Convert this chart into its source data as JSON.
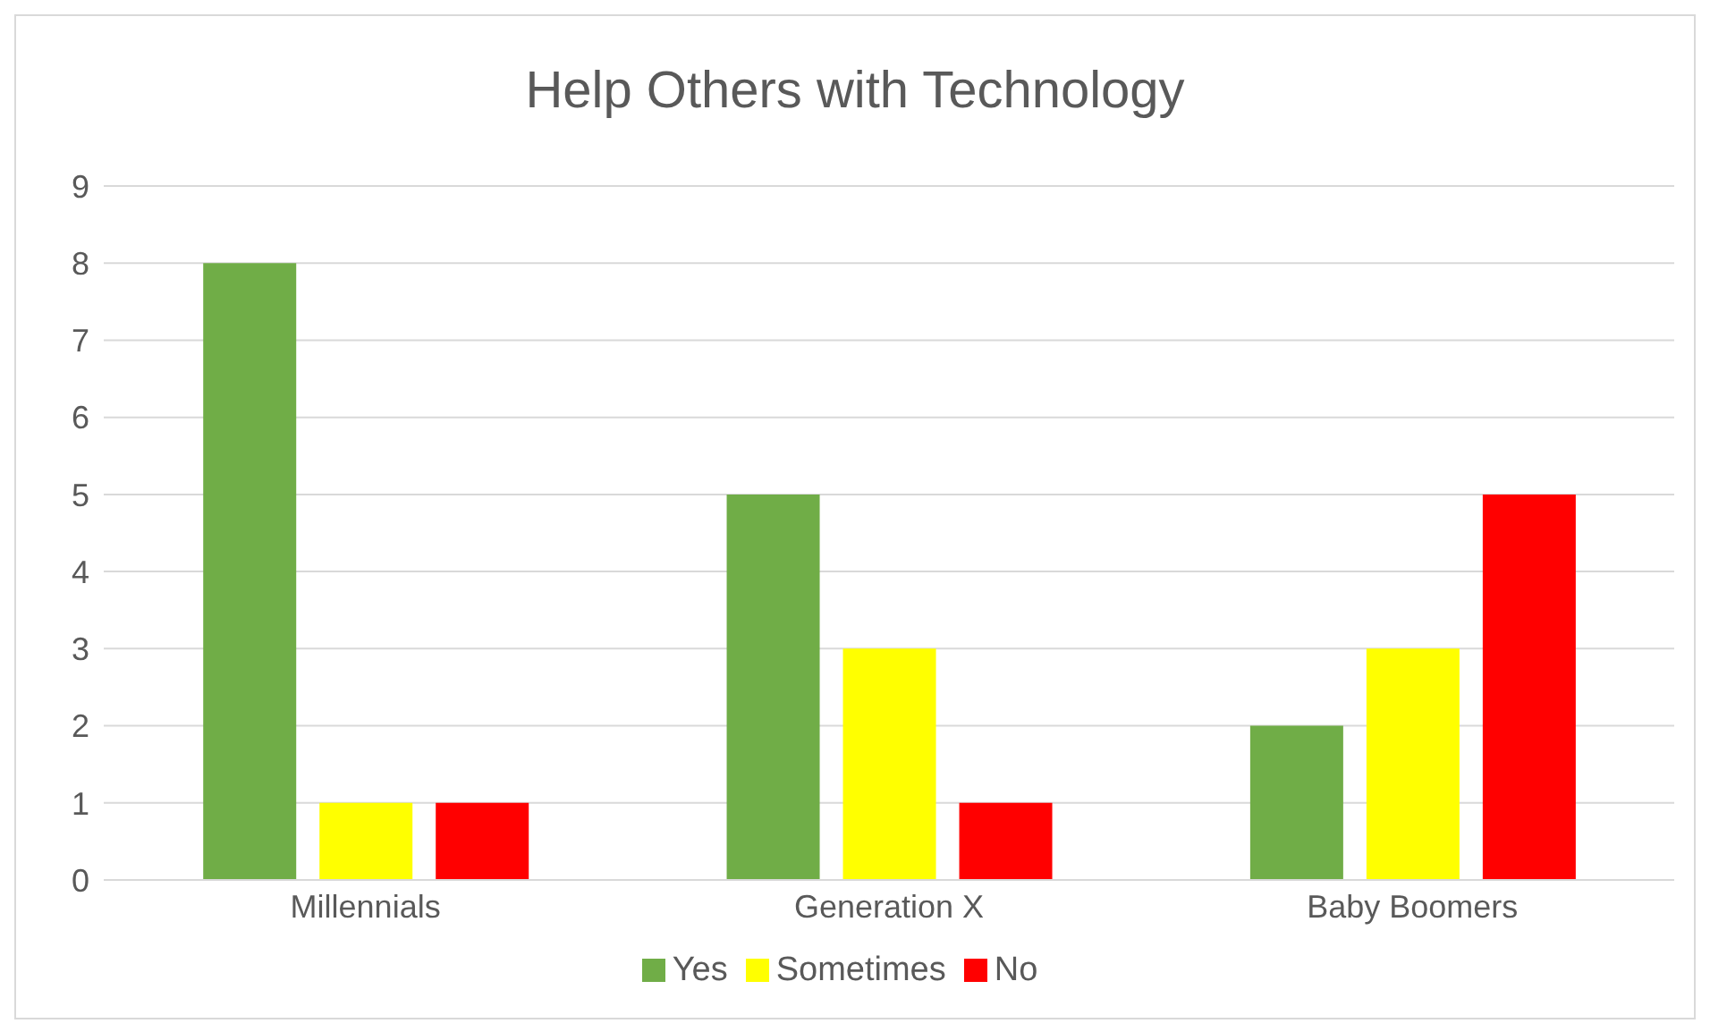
{
  "chart_data": {
    "type": "bar",
    "title": "Help Others with Technology",
    "categories": [
      "Millennials",
      "Generation X",
      "Baby Boomers"
    ],
    "series": [
      {
        "name": "Yes",
        "color": "#70ad47",
        "values": [
          8,
          5,
          2
        ]
      },
      {
        "name": "Sometimes",
        "color": "#ffff00",
        "values": [
          1,
          3,
          3
        ]
      },
      {
        "name": "No",
        "color": "#ff0000",
        "values": [
          1,
          1,
          5
        ]
      }
    ],
    "ylim": [
      0,
      9
    ],
    "yticks": [
      0,
      1,
      2,
      3,
      4,
      5,
      6,
      7,
      8,
      9
    ],
    "grid": "y",
    "legend": "bottom"
  }
}
